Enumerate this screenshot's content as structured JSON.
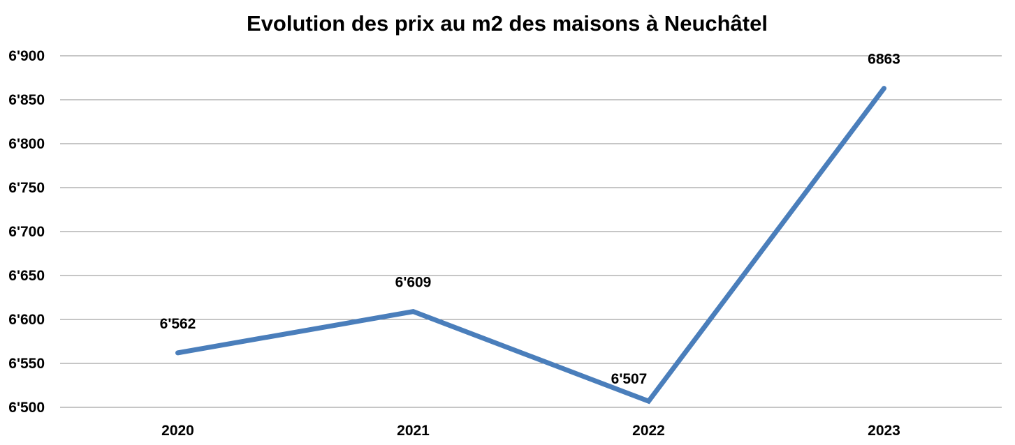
{
  "chart_data": {
    "type": "line",
    "title": "Evolution des prix au m2 des maisons à Neuchâtel",
    "categories": [
      "2020",
      "2021",
      "2022",
      "2023"
    ],
    "series": [
      {
        "values": [
          6562,
          6609,
          6507,
          6863
        ],
        "data_labels": [
          "6'562",
          "6'609",
          "6'507",
          "6863"
        ],
        "color": "#4a7ebb"
      }
    ],
    "ylim": [
      6500,
      6900
    ],
    "yticks": [
      6500,
      6550,
      6600,
      6650,
      6700,
      6750,
      6800,
      6850,
      6900
    ],
    "ytick_labels": [
      "6'500",
      "6'550",
      "6'600",
      "6'650",
      "6'700",
      "6'750",
      "6'800",
      "6'850",
      "6'900"
    ],
    "grid": true,
    "legend": "none"
  }
}
